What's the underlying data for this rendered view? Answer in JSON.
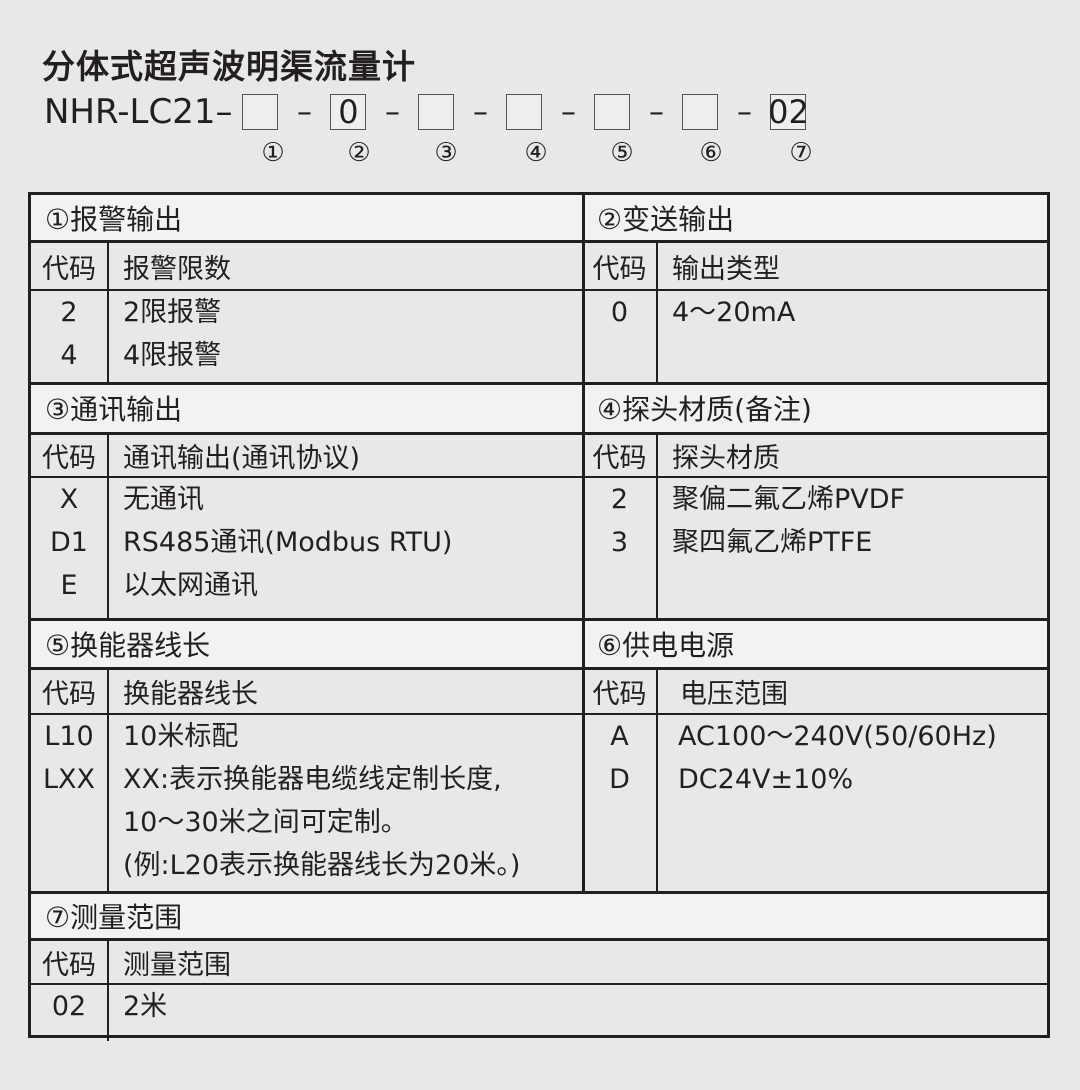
{
  "title": "分体式超声波明渠流量计",
  "model": {
    "prefix": "NHR-LC21–",
    "separator": "–",
    "slots": [
      "",
      "0",
      "",
      "",
      "",
      "",
      "02"
    ],
    "numbers": [
      "①",
      "②",
      "③",
      "④",
      "⑤",
      "⑥",
      "⑦"
    ]
  },
  "sections": [
    {
      "title": "①报警输出",
      "code_header": "代码",
      "desc_header": "报警限数",
      "rows": [
        {
          "code": "2",
          "desc": [
            "2限报警"
          ]
        },
        {
          "code": "4",
          "desc": [
            "4限报警"
          ]
        }
      ]
    },
    {
      "title": "②变送输出",
      "code_header": "代码",
      "desc_header": "输出类型",
      "rows": [
        {
          "code": "0",
          "desc": [
            "4～20mA"
          ]
        }
      ]
    },
    {
      "title": "③通讯输出",
      "code_header": "代码",
      "desc_header": "通讯输出(通讯协议)",
      "rows": [
        {
          "code": "X",
          "desc": [
            "无通讯"
          ]
        },
        {
          "code": "D1",
          "desc": [
            "RS485通讯(Modbus RTU)"
          ]
        },
        {
          "code": "E",
          "desc": [
            "以太网通讯"
          ]
        }
      ]
    },
    {
      "title": "④探头材质(备注)",
      "code_header": "代码",
      "desc_header": "探头材质",
      "rows": [
        {
          "code": "2",
          "desc": [
            "聚偏二氟乙烯PVDF"
          ]
        },
        {
          "code": "3",
          "desc": [
            "聚四氟乙烯PTFE"
          ]
        }
      ]
    },
    {
      "title": "⑤换能器线长",
      "code_header": "代码",
      "desc_header": "换能器线长",
      "rows": [
        {
          "code": "L10",
          "desc": [
            "10米标配"
          ]
        },
        {
          "code": "LXX",
          "desc": [
            "XX:表示换能器电缆线定制长度,",
            "10～30米之间可定制。",
            "(例:L20表示换能器线长为20米。)"
          ]
        }
      ]
    },
    {
      "title": "⑥供电电源",
      "code_header": "代码",
      "desc_header": "电压范围",
      "rows": [
        {
          "code": "A",
          "desc": [
            "AC100～240V(50/60Hz)"
          ]
        },
        {
          "code": "D",
          "desc": [
            "DC24V±10%"
          ]
        }
      ]
    },
    {
      "title": "⑦测量范围",
      "code_header": "代码",
      "desc_header": "测量范围",
      "rows": [
        {
          "code": "02",
          "desc": [
            "2米"
          ]
        }
      ]
    }
  ]
}
